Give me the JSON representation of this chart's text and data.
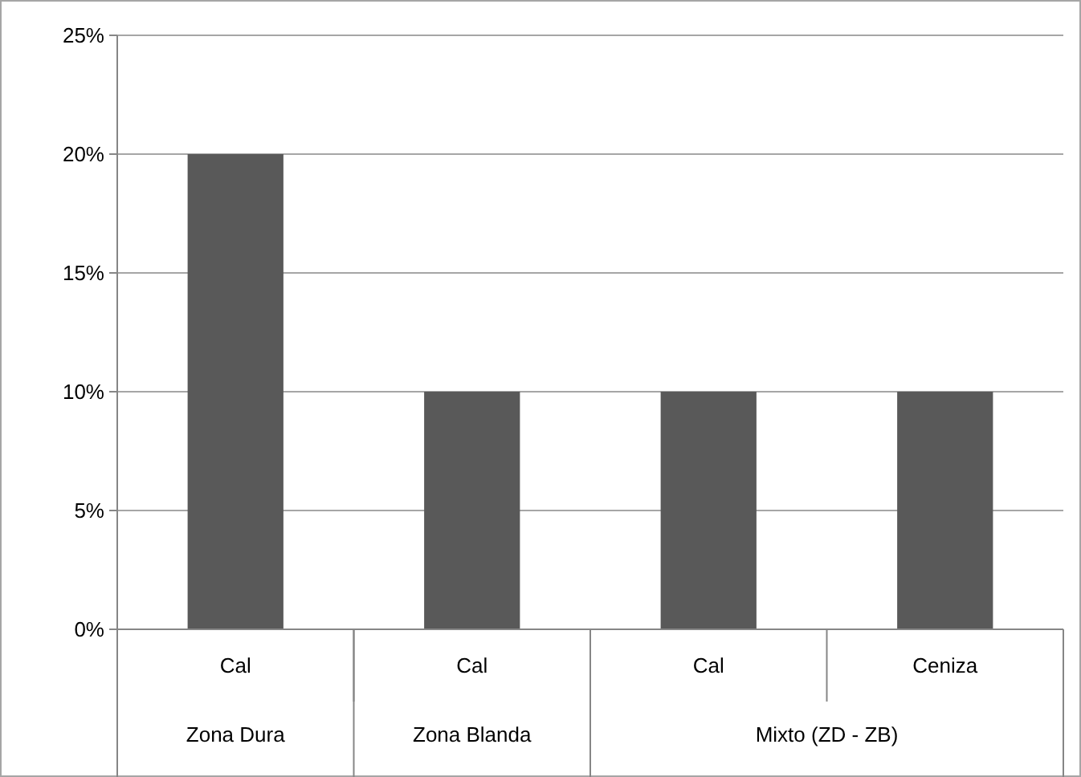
{
  "chart_data": {
    "type": "bar",
    "categories": [
      "Cal",
      "Cal",
      "Cal",
      "Ceniza"
    ],
    "values": [
      20,
      10,
      10,
      10
    ],
    "color": "#595959",
    "ylim": [
      0,
      25
    ],
    "yticks": [
      {
        "value": 0,
        "label": "0%"
      },
      {
        "value": 5,
        "label": "5%"
      },
      {
        "value": 10,
        "label": "10%"
      },
      {
        "value": 15,
        "label": "15%"
      },
      {
        "value": 20,
        "label": "20%"
      },
      {
        "value": 25,
        "label": "25%"
      }
    ],
    "grid": "y",
    "annotations": [
      "Zona Dura",
      "Zona Blanda",
      "Mixto (ZD - ZB)"
    ]
  }
}
